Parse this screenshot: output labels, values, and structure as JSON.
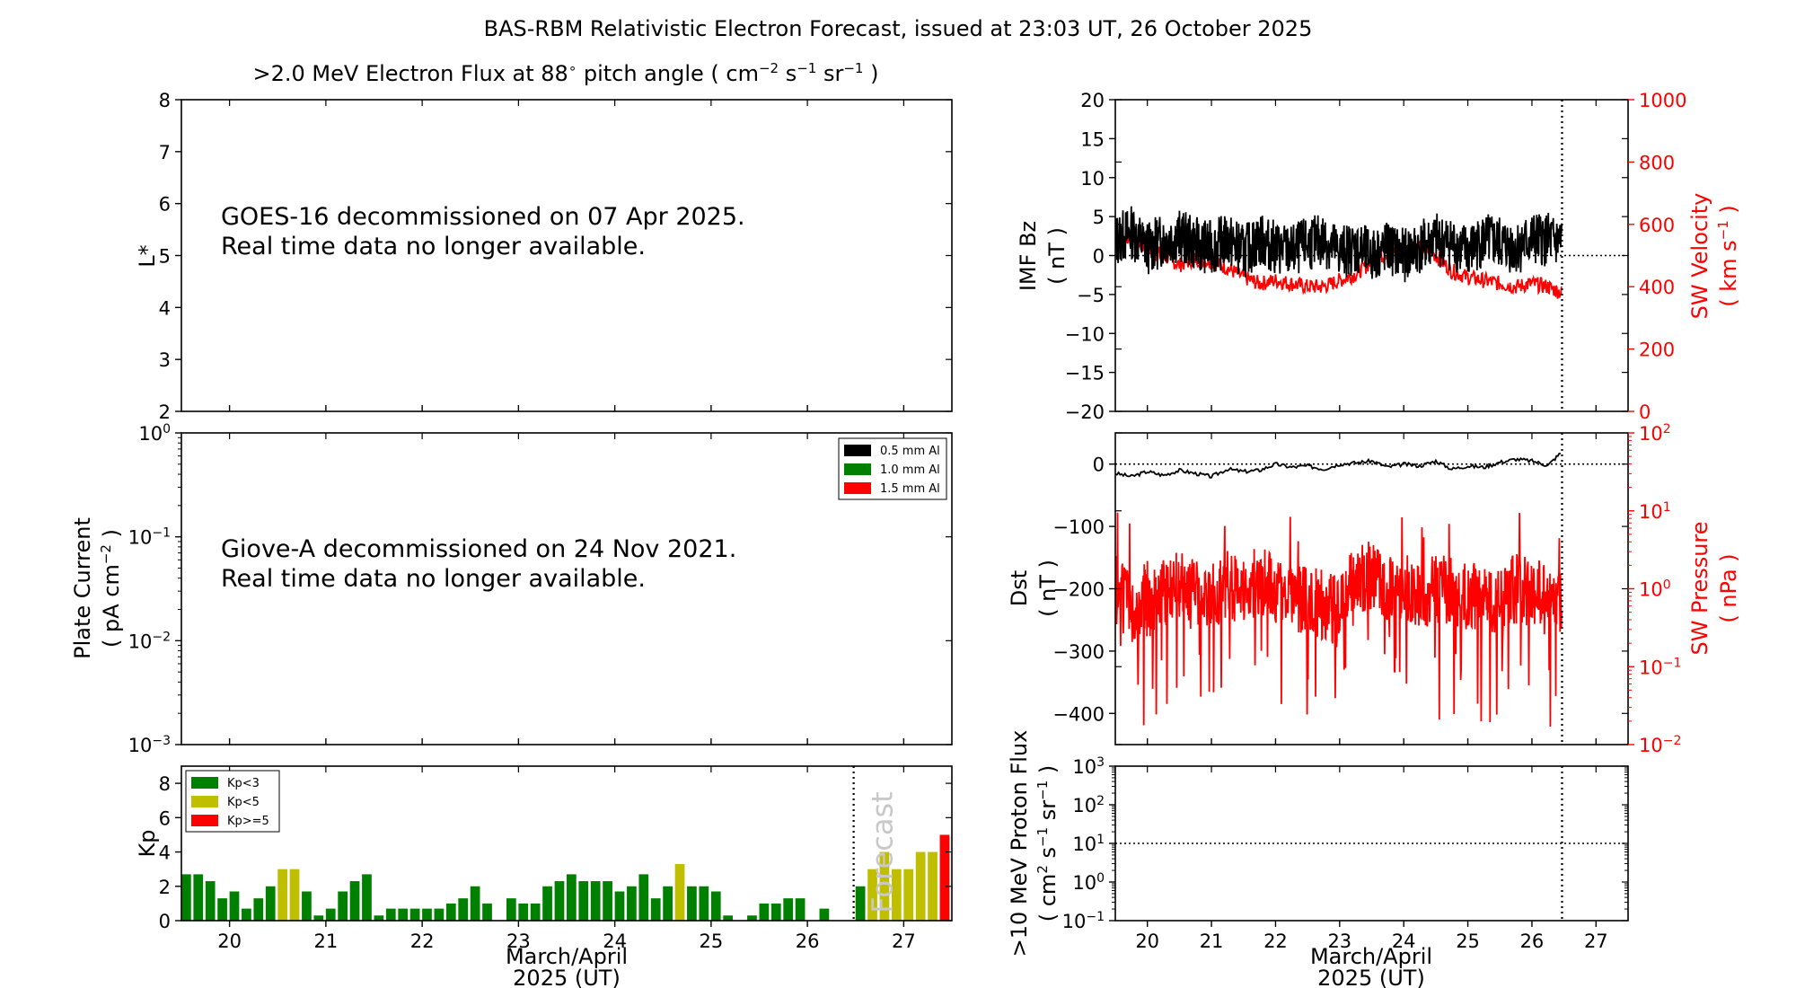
{
  "figure": {
    "title": "BAS-RBM Relativistic Electron Forecast, issued at 23:03 UT, 26 October 2025"
  },
  "colors": {
    "axis": "#000000",
    "red": "#ff0000",
    "green": "#008000",
    "olive": "#bfbf00",
    "forecast_text": "#c8c8c8"
  },
  "chart_data": [
    {
      "id": "electron_flux",
      "type": "heatmap",
      "title_parts": {
        "pre": ">2.0 MeV Electron Flux at 88",
        "deg": "∘",
        "mid": " pitch angle ( cm",
        "e1": "−2",
        "s": " s",
        "e2": "−1",
        "sr": " sr",
        "e3": "−1",
        "post": " )"
      },
      "ylabel": "L*",
      "ylim": [
        2,
        8
      ],
      "yticks": [
        "2",
        "3",
        "4",
        "5",
        "6",
        "7",
        "8"
      ],
      "xlim": [
        19.5,
        27.5
      ],
      "message": [
        "GOES-16 decommissioned on 07 Apr 2025.",
        "Real time data no longer available."
      ],
      "values": []
    },
    {
      "id": "plate_current",
      "type": "line",
      "ylabel": "Plate Current",
      "ylabel2_parts": {
        "pre": "( pA cm",
        "exp": "−2",
        "post": " )"
      },
      "yscale": "log",
      "ylim": [
        0.001,
        1
      ],
      "yticks": [
        {
          "base": "10",
          "exp": "−3"
        },
        {
          "base": "10",
          "exp": "−2"
        },
        {
          "base": "10",
          "exp": "−1"
        },
        {
          "base": "10",
          "exp": "0"
        }
      ],
      "legend": [
        {
          "label": "0.5 mm Al",
          "color": "#000000"
        },
        {
          "label": "1.0 mm Al",
          "color": "#008000"
        },
        {
          "label": "1.5 mm Al",
          "color": "#ff0000"
        }
      ],
      "message": [
        "Giove-A decommissioned on 24 Nov 2021.",
        "Real time data no longer available."
      ],
      "series": []
    },
    {
      "id": "kp",
      "type": "bar",
      "ylabel": "Kp",
      "ylim": [
        0,
        9
      ],
      "yticks": [
        "0",
        "2",
        "4",
        "6",
        "8"
      ],
      "xlim": [
        19.5,
        27.5
      ],
      "xticks": [
        "20",
        "21",
        "22",
        "23",
        "24",
        "25",
        "26",
        "27"
      ],
      "xlabel_lines": [
        "March/April",
        "2025 (UT)"
      ],
      "forecast_start": 26.5,
      "forecast_label": "Forecast",
      "legend": [
        {
          "label": "Kp<3",
          "color": "#008000"
        },
        {
          "label": "Kp<5",
          "color": "#bfbf00"
        },
        {
          "label": "Kp>=5",
          "color": "#ff0000"
        }
      ],
      "bar_width_days": 0.1,
      "observed": [
        2.7,
        2.7,
        2.3,
        1.3,
        1.7,
        0.7,
        1.3,
        2.0,
        3.0,
        3.0,
        1.7,
        0.3,
        0.7,
        1.7,
        2.3,
        2.7,
        0.3,
        0.7,
        0.7,
        0.7,
        0.7,
        0.7,
        1.0,
        1.3,
        2.0,
        1.0,
        0,
        1.3,
        1.0,
        1.0,
        2.0,
        2.3,
        2.7,
        2.3,
        2.3,
        2.3,
        1.7,
        2.0,
        2.7,
        1.3,
        2.0,
        3.3,
        2.0,
        2.0,
        1.7,
        0.3,
        0,
        0.3,
        1.0,
        1.0,
        1.3,
        1.3,
        0,
        0.7
      ],
      "forecast": [
        2.0,
        3.0,
        4.0,
        3.0,
        3.0,
        4.0,
        4.0,
        5.0
      ]
    },
    {
      "id": "imf_sw",
      "type": "line",
      "ylabel": "IMF Bz",
      "ylabel2": "( nT )",
      "ylim": [
        -20,
        20
      ],
      "yticks": [
        "−20",
        "−15",
        "−10",
        "−5",
        "0",
        "5",
        "10",
        "15",
        "20"
      ],
      "y2label": "SW Velocity",
      "y2label2_parts": {
        "pre": "( km s",
        "exp": "−1",
        "post": " )"
      },
      "y2lim": [
        0,
        1000
      ],
      "y2ticks": [
        "0",
        "200",
        "400",
        "600",
        "800",
        "1000"
      ],
      "xlim": [
        19.5,
        27.5
      ],
      "now": 26.47,
      "series": [
        {
          "id": "bz",
          "color": "#000000",
          "x": [
            19.5,
            19.75,
            20.0,
            20.25,
            20.5,
            20.75,
            21.0,
            21.25,
            21.5,
            21.75,
            22.0,
            22.25,
            22.5,
            22.75,
            23.0,
            23.25,
            23.5,
            23.75,
            24.0,
            24.25,
            24.5,
            24.75,
            25.0,
            25.25,
            25.5,
            25.75,
            26.0,
            26.25,
            26.47
          ],
          "y": [
            2,
            3,
            1,
            2,
            2.5,
            1.5,
            1,
            2,
            0.5,
            2,
            1,
            0.5,
            1.5,
            2,
            0.5,
            1,
            0,
            1,
            0,
            1,
            2,
            1.5,
            0.5,
            2,
            1.5,
            1,
            2,
            2,
            1.5
          ]
        },
        {
          "id": "vsw",
          "color": "#ff0000",
          "x": [
            19.5,
            19.75,
            20.0,
            20.25,
            20.5,
            20.75,
            21.0,
            21.25,
            21.5,
            21.75,
            22.0,
            22.25,
            22.5,
            22.75,
            23.0,
            23.25,
            23.5,
            23.75,
            24.0,
            24.25,
            24.5,
            24.75,
            25.0,
            25.25,
            25.5,
            25.75,
            26.0,
            26.25,
            26.47
          ],
          "y": [
            540,
            560,
            520,
            500,
            470,
            490,
            480,
            460,
            430,
            410,
            420,
            410,
            400,
            400,
            420,
            440,
            480,
            510,
            520,
            530,
            500,
            450,
            430,
            420,
            410,
            400,
            410,
            400,
            380
          ]
        }
      ]
    },
    {
      "id": "dst_pressure",
      "type": "line",
      "ylabel": "Dst",
      "ylabel2": "( nT )",
      "ylim": [
        -450,
        50
      ],
      "yticks": [
        "−400",
        "−300",
        "−200",
        "−100",
        "0"
      ],
      "y2label": "SW Pressure",
      "y2label2": "( nPa )",
      "y2scale": "log",
      "y2lim": [
        0.01,
        100
      ],
      "y2ticks": [
        {
          "base": "10",
          "exp": "−2"
        },
        {
          "base": "10",
          "exp": "−1"
        },
        {
          "base": "10",
          "exp": "0"
        },
        {
          "base": "10",
          "exp": "1"
        },
        {
          "base": "10",
          "exp": "2"
        }
      ],
      "xlim": [
        19.5,
        27.5
      ],
      "now": 26.47,
      "series": [
        {
          "id": "dst",
          "color": "#000000",
          "x": [
            19.5,
            19.75,
            20.0,
            20.25,
            20.5,
            20.75,
            21.0,
            21.25,
            21.5,
            21.75,
            22.0,
            22.25,
            22.5,
            22.75,
            23.0,
            23.25,
            23.5,
            23.75,
            24.0,
            24.25,
            24.5,
            24.75,
            25.0,
            25.25,
            25.5,
            25.75,
            26.0,
            26.25,
            26.47
          ],
          "y": [
            -15,
            -20,
            -12,
            -18,
            -10,
            -15,
            -20,
            -8,
            -12,
            -10,
            0,
            -5,
            -3,
            -8,
            0,
            2,
            5,
            -5,
            0,
            -3,
            5,
            -8,
            -3,
            -5,
            3,
            8,
            5,
            -2,
            20
          ]
        },
        {
          "id": "psw",
          "color": "#ff0000",
          "x": [
            19.5,
            19.75,
            20.0,
            20.25,
            20.5,
            20.75,
            21.0,
            21.25,
            21.5,
            21.75,
            22.0,
            22.25,
            22.5,
            22.75,
            23.0,
            23.25,
            23.5,
            23.75,
            24.0,
            24.25,
            24.5,
            24.75,
            25.0,
            25.25,
            25.5,
            25.75,
            26.0,
            26.25,
            26.47
          ],
          "y": [
            1.0,
            0.5,
            0.6,
            0.9,
            1.2,
            1.0,
            0.8,
            1.1,
            1.0,
            1.3,
            0.9,
            0.7,
            0.8,
            0.6,
            0.5,
            1.3,
            1.5,
            1.0,
            1.2,
            0.8,
            1.0,
            0.9,
            0.8,
            0.7,
            0.8,
            1.0,
            0.9,
            0.8,
            0.6
          ]
        }
      ]
    },
    {
      "id": "proton_flux",
      "type": "line",
      "ylabel_parts": {
        "l1": ">10 MeV Proton Flux",
        "l2pre": "( cm",
        "e1": "2",
        "l2mid": " s",
        "e2": "−1",
        "l2sr": " sr",
        "e3": "−1",
        "l2post": " )"
      },
      "yscale": "log",
      "ylim": [
        0.1,
        1000
      ],
      "yticks": [
        {
          "base": "10",
          "exp": "−1"
        },
        {
          "base": "10",
          "exp": "0"
        },
        {
          "base": "10",
          "exp": "1"
        },
        {
          "base": "10",
          "exp": "2"
        },
        {
          "base": "10",
          "exp": "3"
        }
      ],
      "threshold": 10,
      "xlim": [
        19.5,
        27.5
      ],
      "xticks": [
        "20",
        "21",
        "22",
        "23",
        "24",
        "25",
        "26",
        "27"
      ],
      "xlabel_lines": [
        "March/April",
        "2025 (UT)"
      ],
      "now": 26.47,
      "series": []
    }
  ]
}
